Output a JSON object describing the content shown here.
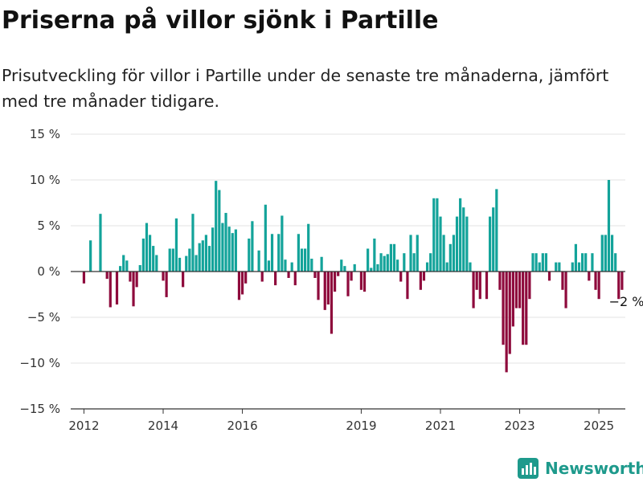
{
  "header": {
    "title": "Priserna på villor sjönk i Partille",
    "subtitle": "Prisutveckling för villor i Partille under de senaste tre månaderna, jämfört med tre månader tidigare."
  },
  "brand": {
    "name": "Newsworthy",
    "icon": "newsworthy-logo-icon"
  },
  "colors": {
    "positive": "#13a39a",
    "negative": "#8e0a3c",
    "grid": "#e3e3e3",
    "axis": "#333333"
  },
  "chart_data": {
    "type": "bar",
    "x_unit": "month",
    "x_range": [
      "2011-09",
      "2025-09"
    ],
    "ylim": [
      -15,
      15
    ],
    "y_ticks": [
      15,
      10,
      5,
      0,
      -5,
      -10,
      -15
    ],
    "y_tick_labels": [
      "15 %",
      "10 %",
      "5 %",
      "0 %",
      "−5 %",
      "−10 %",
      "−15 %"
    ],
    "x_ticks": [
      "2012",
      "2014",
      "2016",
      "2019",
      "2021",
      "2023",
      "2025"
    ],
    "grid": true,
    "legend": "none",
    "annotation": {
      "month": "2025-05",
      "text": "−2 %"
    },
    "series": [
      {
        "values": [
          [
            "2012-01",
            -1.3
          ],
          [
            "2012-03",
            3.4
          ],
          [
            "2012-06",
            6.3
          ],
          [
            "2012-08",
            -0.8
          ],
          [
            "2012-09",
            -3.9
          ],
          [
            "2012-11",
            -3.6
          ],
          [
            "2012-12",
            0.6
          ],
          [
            "2013-01",
            1.8
          ],
          [
            "2013-02",
            1.2
          ],
          [
            "2013-03",
            -1.1
          ],
          [
            "2013-04",
            -3.8
          ],
          [
            "2013-05",
            -1.7
          ],
          [
            "2013-06",
            0.7
          ],
          [
            "2013-07",
            3.6
          ],
          [
            "2013-08",
            5.3
          ],
          [
            "2013-09",
            4.0
          ],
          [
            "2013-10",
            2.8
          ],
          [
            "2013-11",
            1.8
          ],
          [
            "2014-01",
            -1.0
          ],
          [
            "2014-02",
            -2.8
          ],
          [
            "2014-03",
            2.5
          ],
          [
            "2014-04",
            2.5
          ],
          [
            "2014-05",
            5.8
          ],
          [
            "2014-06",
            1.5
          ],
          [
            "2014-07",
            -1.7
          ],
          [
            "2014-08",
            1.7
          ],
          [
            "2014-09",
            2.5
          ],
          [
            "2014-10",
            6.3
          ],
          [
            "2014-11",
            1.8
          ],
          [
            "2014-12",
            3.1
          ],
          [
            "2015-01",
            3.4
          ],
          [
            "2015-02",
            4.0
          ],
          [
            "2015-03",
            2.8
          ],
          [
            "2015-04",
            4.8
          ],
          [
            "2015-05",
            9.9
          ],
          [
            "2015-06",
            8.9
          ],
          [
            "2015-07",
            5.3
          ],
          [
            "2015-08",
            6.4
          ],
          [
            "2015-09",
            4.9
          ],
          [
            "2015-10",
            4.2
          ],
          [
            "2015-11",
            4.6
          ],
          [
            "2015-12",
            -3.1
          ],
          [
            "2016-01",
            -2.5
          ],
          [
            "2016-02",
            -1.3
          ],
          [
            "2016-03",
            3.6
          ],
          [
            "2016-04",
            5.5
          ],
          [
            "2016-06",
            2.3
          ],
          [
            "2016-07",
            -1.1
          ],
          [
            "2016-08",
            7.3
          ],
          [
            "2016-09",
            1.2
          ],
          [
            "2016-10",
            4.1
          ],
          [
            "2016-11",
            -1.5
          ],
          [
            "2016-12",
            4.1
          ],
          [
            "2017-01",
            6.1
          ],
          [
            "2017-02",
            1.3
          ],
          [
            "2017-03",
            -0.7
          ],
          [
            "2017-04",
            1.0
          ],
          [
            "2017-05",
            -1.5
          ],
          [
            "2017-06",
            4.1
          ],
          [
            "2017-07",
            2.5
          ],
          [
            "2017-08",
            2.5
          ],
          [
            "2017-09",
            5.2
          ],
          [
            "2017-10",
            1.4
          ],
          [
            "2017-11",
            -0.7
          ],
          [
            "2017-12",
            -3.1
          ],
          [
            "2018-01",
            1.6
          ],
          [
            "2018-02",
            -4.2
          ],
          [
            "2018-03",
            -3.6
          ],
          [
            "2018-04",
            -6.8
          ],
          [
            "2018-05",
            -2.2
          ],
          [
            "2018-06",
            -0.5
          ],
          [
            "2018-07",
            1.3
          ],
          [
            "2018-08",
            0.6
          ],
          [
            "2018-09",
            -2.7
          ],
          [
            "2018-10",
            -1.0
          ],
          [
            "2018-11",
            0.8
          ],
          [
            "2019-01",
            -2.0
          ],
          [
            "2019-02",
            -2.2
          ],
          [
            "2019-03",
            2.5
          ],
          [
            "2019-04",
            0.4
          ],
          [
            "2019-05",
            3.6
          ],
          [
            "2019-06",
            0.8
          ],
          [
            "2019-07",
            2.0
          ],
          [
            "2019-08",
            1.7
          ],
          [
            "2019-09",
            1.9
          ],
          [
            "2019-10",
            3.0
          ],
          [
            "2019-11",
            3.0
          ],
          [
            "2019-12",
            1.3
          ],
          [
            "2020-01",
            -1.1
          ],
          [
            "2020-02",
            2.0
          ],
          [
            "2020-03",
            -3.0
          ],
          [
            "2020-04",
            4.0
          ],
          [
            "2020-05",
            2.0
          ],
          [
            "2020-06",
            4.0
          ],
          [
            "2020-07",
            -2.0
          ],
          [
            "2020-08",
            -1.0
          ],
          [
            "2020-09",
            1.0
          ],
          [
            "2020-10",
            2.0
          ],
          [
            "2020-11",
            8.0
          ],
          [
            "2020-12",
            8.0
          ],
          [
            "2021-01",
            6.0
          ],
          [
            "2021-02",
            4.0
          ],
          [
            "2021-03",
            1.0
          ],
          [
            "2021-04",
            3.0
          ],
          [
            "2021-05",
            4.0
          ],
          [
            "2021-06",
            6.0
          ],
          [
            "2021-07",
            8.0
          ],
          [
            "2021-08",
            7.0
          ],
          [
            "2021-09",
            6.0
          ],
          [
            "2021-10",
            1.0
          ],
          [
            "2021-11",
            -4.0
          ],
          [
            "2021-12",
            -2.0
          ],
          [
            "2022-01",
            -3.0
          ],
          [
            "2022-03",
            -3.0
          ],
          [
            "2022-04",
            6.0
          ],
          [
            "2022-05",
            7.0
          ],
          [
            "2022-06",
            9.0
          ],
          [
            "2022-07",
            -2.0
          ],
          [
            "2022-08",
            -8.0
          ],
          [
            "2022-09",
            -11.0
          ],
          [
            "2022-10",
            -9.0
          ],
          [
            "2022-11",
            -6.0
          ],
          [
            "2022-12",
            -4.0
          ],
          [
            "2023-01",
            -4.0
          ],
          [
            "2023-02",
            -8.0
          ],
          [
            "2023-03",
            -8.0
          ],
          [
            "2023-04",
            -3.0
          ],
          [
            "2023-05",
            2.0
          ],
          [
            "2023-06",
            2.0
          ],
          [
            "2023-07",
            1.0
          ],
          [
            "2023-08",
            2.0
          ],
          [
            "2023-09",
            2.0
          ],
          [
            "2023-10",
            -1.0
          ],
          [
            "2023-12",
            1.0
          ],
          [
            "2024-01",
            1.0
          ],
          [
            "2024-02",
            -2.0
          ],
          [
            "2024-03",
            -4.0
          ],
          [
            "2024-05",
            1.0
          ],
          [
            "2024-06",
            3.0
          ],
          [
            "2024-07",
            1.0
          ],
          [
            "2024-08",
            2.0
          ],
          [
            "2024-09",
            2.0
          ],
          [
            "2024-10",
            -1.0
          ],
          [
            "2024-11",
            2.0
          ],
          [
            "2024-12",
            -2.0
          ],
          [
            "2025-01",
            -3.0
          ],
          [
            "2025-02",
            4.0
          ],
          [
            "2025-03",
            4.0
          ],
          [
            "2025-04",
            10.0
          ],
          [
            "2025-05",
            4.0
          ],
          [
            "2025-06",
            2.0
          ],
          [
            "2025-07",
            -3.0
          ],
          [
            "2025-08",
            -2.0
          ]
        ]
      }
    ]
  }
}
